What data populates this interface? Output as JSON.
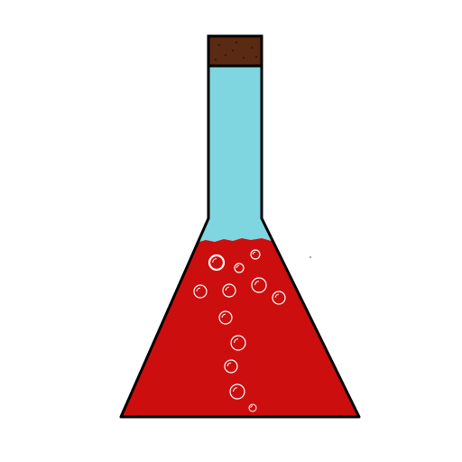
{
  "illustration": {
    "subject": "corked-erlenmeyer-flask",
    "cork_color": "#5a2a12",
    "cork_speckle_color": "#2e140a",
    "upper_liquid_color": "#7fd6e0",
    "lower_liquid_color": "#cc0e0e",
    "outline_color": "#000000",
    "bubble_color": "#ffffff"
  }
}
